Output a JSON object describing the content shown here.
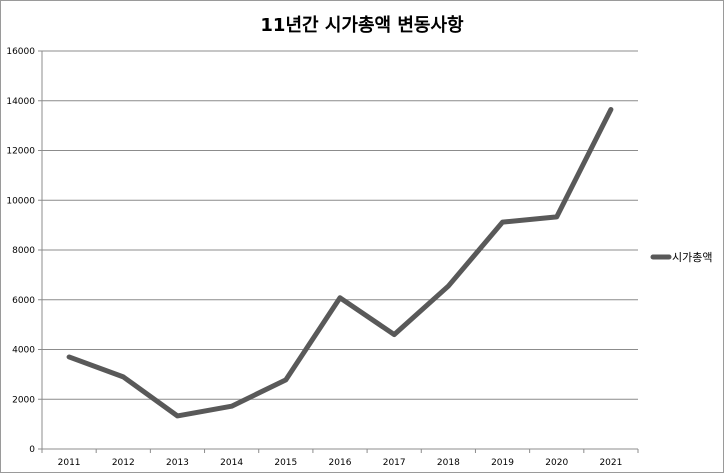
{
  "chart_data": {
    "type": "line",
    "title": "11년간 시가총액 변동사항",
    "xlabel": "",
    "ylabel": "",
    "categories": [
      "2011",
      "2012",
      "2013",
      "2014",
      "2015",
      "2016",
      "2017",
      "2018",
      "2019",
      "2020",
      "2021"
    ],
    "series": [
      {
        "name": "시가총액",
        "values": [
          3700,
          2900,
          1330,
          1720,
          2780,
          6080,
          4600,
          6550,
          9120,
          9330,
          13650
        ],
        "color": "#595959"
      }
    ],
    "ylim": [
      0,
      16000
    ],
    "yticks": [
      "0",
      "2000",
      "4000",
      "6000",
      "8000",
      "10000",
      "12000",
      "14000",
      "16000"
    ],
    "grid": true,
    "legend_position": "right"
  }
}
